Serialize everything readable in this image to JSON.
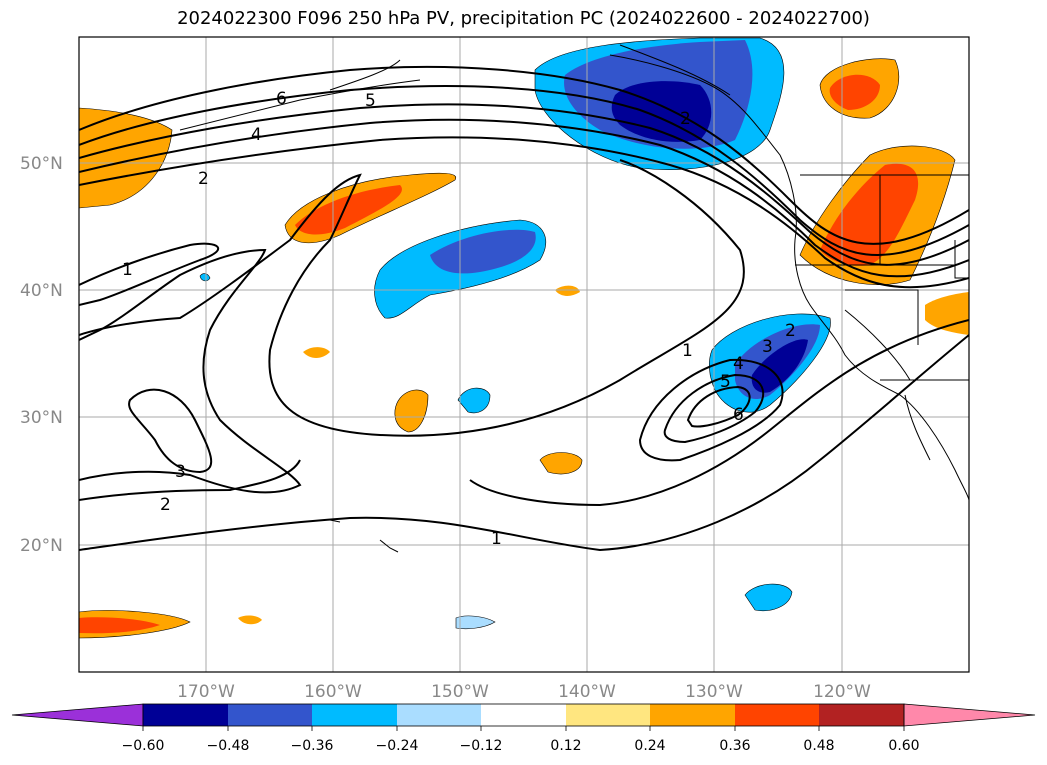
{
  "title": "2024022300 F096 250 hPa PV, precipitation PC (2024022600 - 2024022700)",
  "lat_labels": [
    "50°N",
    "40°N",
    "30°N",
    "20°N"
  ],
  "lon_labels": [
    "170°W",
    "160°W",
    "150°W",
    "140°W",
    "130°W",
    "120°W"
  ],
  "contour_labels": [
    "6",
    "5",
    "4",
    "2",
    "1",
    "3",
    "2",
    "1",
    "1",
    "2",
    "3",
    "4",
    "5",
    "6",
    "2"
  ],
  "colorbar": {
    "colors": [
      "#9b30d9",
      "#000096",
      "#3355cc",
      "#00bbff",
      "#aaddff",
      "#ffffff",
      "#ffe680",
      "#ffa500",
      "#ff4400",
      "#b22222",
      "#ff88aa"
    ],
    "labels": [
      "−0.60",
      "−0.48",
      "−0.36",
      "−0.24",
      "−0.12",
      "0.12",
      "0.24",
      "0.36",
      "0.48",
      "0.60"
    ]
  }
}
